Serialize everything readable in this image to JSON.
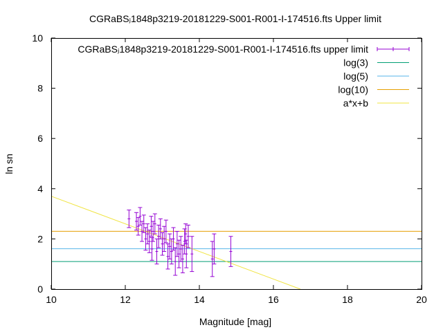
{
  "chart_data": {
    "type": "scatter",
    "title": "CGRaBSⱼ1848p3219-20181229-S001-R001-I-174516.fts Upper limit",
    "xlabel": "Magnitude [mag]",
    "ylabel": "ln sn",
    "xlim": [
      10,
      20
    ],
    "ylim": [
      0,
      10
    ],
    "xticks": [
      "10",
      "12",
      "14",
      "16",
      "18",
      "20"
    ],
    "yticks": [
      "0",
      "2",
      "4",
      "6",
      "8",
      "10"
    ],
    "grid": false,
    "legend_position": "top-right",
    "series": [
      {
        "name": "CGRaBSⱼ1848p3219-20181229-S001-R001-I-174516.fts upper limit",
        "kind": "errorbar",
        "color": "#9400d3",
        "points": [
          {
            "x": 12.1,
            "y": 2.8,
            "err": 0.35
          },
          {
            "x": 12.3,
            "y": 2.7,
            "err": 0.35
          },
          {
            "x": 12.35,
            "y": 2.5,
            "err": 0.35
          },
          {
            "x": 12.4,
            "y": 2.9,
            "err": 0.35
          },
          {
            "x": 12.45,
            "y": 2.3,
            "err": 0.4
          },
          {
            "x": 12.5,
            "y": 2.6,
            "err": 0.35
          },
          {
            "x": 12.55,
            "y": 2.0,
            "err": 0.45
          },
          {
            "x": 12.6,
            "y": 2.2,
            "err": 0.4
          },
          {
            "x": 12.65,
            "y": 1.9,
            "err": 0.45
          },
          {
            "x": 12.7,
            "y": 2.5,
            "err": 0.4
          },
          {
            "x": 12.72,
            "y": 1.6,
            "err": 0.45
          },
          {
            "x": 12.75,
            "y": 2.3,
            "err": 0.4
          },
          {
            "x": 12.8,
            "y": 2.6,
            "err": 0.4
          },
          {
            "x": 12.85,
            "y": 1.5,
            "err": 0.5
          },
          {
            "x": 12.9,
            "y": 2.1,
            "err": 0.45
          },
          {
            "x": 12.95,
            "y": 2.4,
            "err": 0.4
          },
          {
            "x": 13.0,
            "y": 1.8,
            "err": 0.45
          },
          {
            "x": 13.05,
            "y": 2.0,
            "err": 0.5
          },
          {
            "x": 13.1,
            "y": 2.3,
            "err": 0.45
          },
          {
            "x": 13.15,
            "y": 1.3,
            "err": 0.5
          },
          {
            "x": 13.2,
            "y": 1.7,
            "err": 0.5
          },
          {
            "x": 13.25,
            "y": 1.5,
            "err": 0.5
          },
          {
            "x": 13.3,
            "y": 2.0,
            "err": 0.45
          },
          {
            "x": 13.35,
            "y": 1.1,
            "err": 0.55
          },
          {
            "x": 13.4,
            "y": 1.8,
            "err": 0.5
          },
          {
            "x": 13.45,
            "y": 1.4,
            "err": 0.55
          },
          {
            "x": 13.5,
            "y": 1.6,
            "err": 0.5
          },
          {
            "x": 13.55,
            "y": 1.2,
            "err": 0.55
          },
          {
            "x": 13.6,
            "y": 1.9,
            "err": 0.5
          },
          {
            "x": 13.63,
            "y": 2.2,
            "err": 0.4
          },
          {
            "x": 13.65,
            "y": 1.4,
            "err": 0.55
          },
          {
            "x": 13.7,
            "y": 2.1,
            "err": 0.45
          },
          {
            "x": 13.8,
            "y": 1.4,
            "err": 0.7
          },
          {
            "x": 14.35,
            "y": 1.2,
            "err": 0.7
          },
          {
            "x": 14.4,
            "y": 1.6,
            "err": 0.6
          },
          {
            "x": 14.85,
            "y": 1.5,
            "err": 0.6
          }
        ]
      },
      {
        "name": "log(3)",
        "kind": "hline",
        "color": "#009e73",
        "y": 1.0986
      },
      {
        "name": "log(5)",
        "kind": "hline",
        "color": "#56b4e9",
        "y": 1.6094
      },
      {
        "name": "log(10)",
        "kind": "hline",
        "color": "#e69f00",
        "y": 2.3026
      },
      {
        "name": "a*x+b",
        "kind": "line",
        "color": "#f0e442",
        "slope": -0.55,
        "intercept": 9.2
      }
    ]
  }
}
